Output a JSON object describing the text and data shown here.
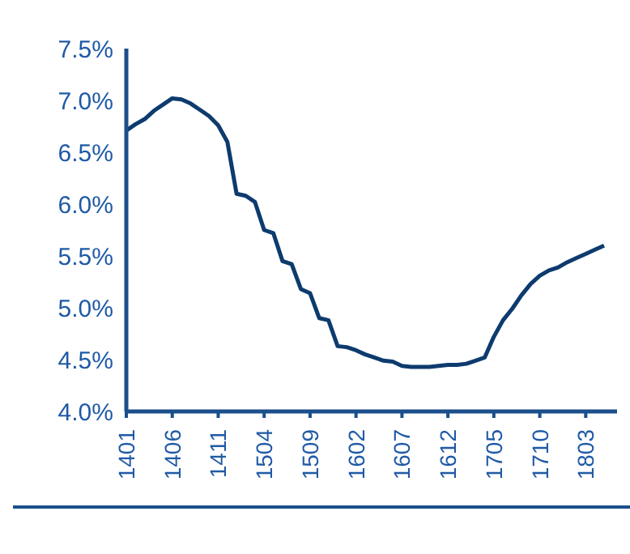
{
  "chart_data": {
    "type": "line",
    "categories": [
      "1401",
      null,
      null,
      null,
      null,
      "1406",
      null,
      null,
      null,
      null,
      "1411",
      null,
      null,
      null,
      null,
      "1504",
      null,
      null,
      null,
      null,
      "1509",
      null,
      null,
      null,
      null,
      "1602",
      null,
      null,
      null,
      null,
      "1607",
      null,
      null,
      null,
      null,
      "1612",
      null,
      null,
      null,
      null,
      "1705",
      null,
      null,
      null,
      null,
      "1710",
      null,
      null,
      null,
      null,
      "1803",
      null,
      null
    ],
    "series": [
      {
        "color": "#0d3b6e",
        "values": [
          6.71,
          6.77,
          6.82,
          6.9,
          6.96,
          7.02,
          7.01,
          6.97,
          6.91,
          6.85,
          6.76,
          6.6,
          6.1,
          6.08,
          6.02,
          5.75,
          5.72,
          5.45,
          5.42,
          5.18,
          5.14,
          4.9,
          4.88,
          4.63,
          4.62,
          4.59,
          4.55,
          4.52,
          4.49,
          4.48,
          4.44,
          4.43,
          4.43,
          4.43,
          4.44,
          4.45,
          4.45,
          4.46,
          4.49,
          4.52,
          4.72,
          4.88,
          4.99,
          5.12,
          5.23,
          5.31,
          5.36,
          5.39,
          5.44,
          5.48,
          5.52,
          5.56,
          5.6
        ]
      }
    ],
    "ylim": [
      4,
      7.5
    ],
    "yticks": [
      {
        "value": 4,
        "label": "4.0%"
      },
      {
        "value": 4.5,
        "label": "4.5%"
      },
      {
        "value": 5,
        "label": "5.0%"
      },
      {
        "value": 5.5,
        "label": "5.5%"
      },
      {
        "value": 6,
        "label": "6.0%"
      },
      {
        "value": 6.5,
        "label": "6.5%"
      },
      {
        "value": 7,
        "label": "7.0%"
      },
      {
        "value": 7.5,
        "label": "7.5%"
      }
    ],
    "grid": false,
    "legend": false,
    "marker": "none",
    "line_style": "solid"
  }
}
